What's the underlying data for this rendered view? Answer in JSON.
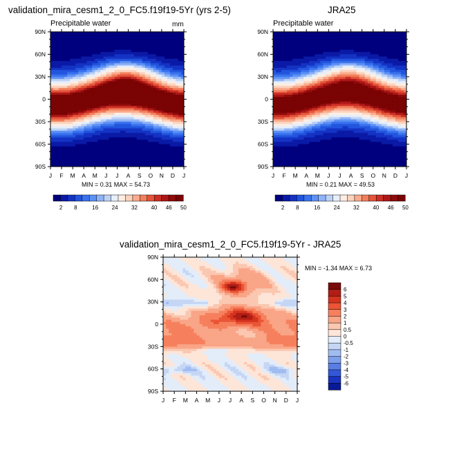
{
  "panels": [
    {
      "id": "model",
      "title": "validation_mira_cesm1_2_0_FC5.f19f19-5Yr (yrs 2-5)",
      "subtitle": "Precipitable water",
      "units": "mm",
      "stats": "MIN =  0.31 MAX = 54.73"
    },
    {
      "id": "obs",
      "title": "JRA25",
      "subtitle": "Precipitable water",
      "units": "",
      "stats": "MIN =  0.21 MAX = 49.53"
    },
    {
      "id": "diff",
      "title": "validation_mira_cesm1_2_0_FC5.f19f19-5Yr - JRA25",
      "subtitle": "",
      "units": "",
      "stats": "MIN = -1.34 MAX =  6.73"
    }
  ],
  "colorbar_abs": {
    "labels": [
      "2",
      "8",
      "16",
      "24",
      "32",
      "40",
      "46",
      "50"
    ],
    "colors": [
      "#00007f",
      "#0a1aa6",
      "#1433c4",
      "#2255dd",
      "#3a72ee",
      "#5d92f5",
      "#8fb2f7",
      "#bcd2f5",
      "#e6eefa",
      "#fdeee3",
      "#fcd2bd",
      "#f9ab8c",
      "#f27f5c",
      "#e4543a",
      "#cc2e23",
      "#ad1717",
      "#8e0b0b",
      "#7a0303"
    ]
  },
  "colorbar_diff": {
    "labels": [
      "6",
      "5",
      "4",
      "3",
      "2",
      "1",
      "0.5",
      "0",
      "-0.5",
      "-1",
      "-2",
      "-3",
      "-4",
      "-5",
      "-6"
    ],
    "colors": [
      "#7a0b0b",
      "#b01e15",
      "#d4331e",
      "#ea5535",
      "#f6805d",
      "#f9a587",
      "#fbc7b0",
      "#fde5d8",
      "#e3ecf9",
      "#c5d6f5",
      "#a1bcf1",
      "#7d9fec",
      "#587ee5",
      "#3357d8",
      "#1a33c0",
      "#0a1995"
    ]
  },
  "chart_data": [
    {
      "type": "heatmap",
      "title": "validation_mira_cesm1_2_0_FC5.f19f19-5Yr (yrs 2-5)",
      "subtitle": "Precipitable water",
      "units": "mm",
      "x": [
        "J",
        "F",
        "M",
        "A",
        "M",
        "J",
        "J",
        "A",
        "S",
        "O",
        "N",
        "D",
        "J"
      ],
      "y": [
        "90S",
        "60S",
        "30S",
        "0",
        "30N",
        "60N",
        "90N"
      ],
      "xlim": [
        0,
        12
      ],
      "ylim": [
        -90,
        90
      ],
      "stats": {
        "min": 0.31,
        "max": 54.73
      },
      "colorbar_levels": [
        2,
        4,
        6,
        8,
        10,
        12,
        14,
        16,
        20,
        24,
        28,
        32,
        36,
        40,
        43,
        46,
        48,
        50
      ]
    },
    {
      "type": "heatmap",
      "title": "JRA25",
      "subtitle": "Precipitable water",
      "x": [
        "J",
        "F",
        "M",
        "A",
        "M",
        "J",
        "J",
        "A",
        "S",
        "O",
        "N",
        "D",
        "J"
      ],
      "y": [
        "90S",
        "60S",
        "30S",
        "0",
        "30N",
        "60N",
        "90N"
      ],
      "xlim": [
        0,
        12
      ],
      "ylim": [
        -90,
        90
      ],
      "stats": {
        "min": 0.21,
        "max": 49.53
      },
      "colorbar_levels": [
        2,
        4,
        6,
        8,
        10,
        12,
        14,
        16,
        20,
        24,
        28,
        32,
        36,
        40,
        43,
        46,
        48,
        50
      ]
    },
    {
      "type": "heatmap",
      "title": "validation_mira_cesm1_2_0_FC5.f19f19-5Yr - JRA25",
      "x": [
        "J",
        "F",
        "M",
        "A",
        "M",
        "J",
        "J",
        "A",
        "S",
        "O",
        "N",
        "D",
        "J"
      ],
      "y": [
        "90S",
        "60S",
        "30S",
        "0",
        "30N",
        "60N",
        "90N"
      ],
      "xlim": [
        0,
        12
      ],
      "ylim": [
        -90,
        90
      ],
      "stats": {
        "min": -1.34,
        "max": 6.73
      },
      "colorbar_levels": [
        -6,
        -5,
        -4,
        -3,
        -2,
        -1,
        -0.5,
        0,
        0.5,
        1,
        2,
        3,
        4,
        5,
        6
      ]
    }
  ]
}
